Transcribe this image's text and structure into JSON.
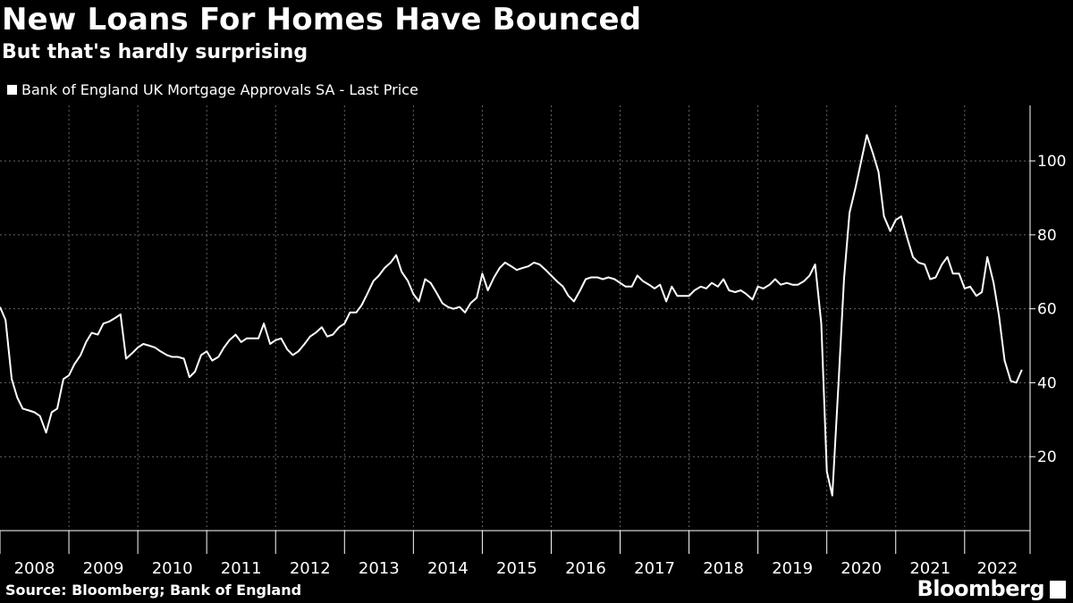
{
  "title": "New Loans For Homes Have Bounced",
  "subtitle": "But that's hardly surprising",
  "legend": "Bank of England UK Mortgage Approvals SA - Last Price",
  "source": "Source: Bloomberg; Bank of England",
  "brand": "Bloomberg",
  "colors": {
    "background": "#000000",
    "line": "#ffffff",
    "grid": "#666666"
  },
  "chart_data": {
    "type": "line",
    "title": "New Loans For Homes Have Bounced",
    "subtitle": "But that's hardly surprising",
    "xlabel": "",
    "ylabel": "",
    "ylim": [
      0,
      115
    ],
    "xlim": [
      2008.0,
      2022.95
    ],
    "yticks": [
      20,
      40,
      60,
      80,
      100
    ],
    "xticks": [
      "2008",
      "2009",
      "2010",
      "2011",
      "2012",
      "2013",
      "2014",
      "2015",
      "2016",
      "2017",
      "2018",
      "2019",
      "2020",
      "2021",
      "2022"
    ],
    "grid": true,
    "legend_position": "top-left",
    "series": [
      {
        "name": "Bank of England UK Mortgage Approvals SA - Last Price",
        "x": [
          2008.0,
          2008.08,
          2008.17,
          2008.25,
          2008.33,
          2008.42,
          2008.5,
          2008.58,
          2008.67,
          2008.75,
          2008.83,
          2008.92,
          2009.0,
          2009.08,
          2009.17,
          2009.25,
          2009.33,
          2009.42,
          2009.5,
          2009.58,
          2009.67,
          2009.75,
          2009.83,
          2009.92,
          2010.0,
          2010.08,
          2010.17,
          2010.25,
          2010.33,
          2010.42,
          2010.5,
          2010.58,
          2010.67,
          2010.75,
          2010.83,
          2010.92,
          2011.0,
          2011.08,
          2011.17,
          2011.25,
          2011.33,
          2011.42,
          2011.5,
          2011.58,
          2011.67,
          2011.75,
          2011.83,
          2011.92,
          2012.0,
          2012.08,
          2012.17,
          2012.25,
          2012.33,
          2012.42,
          2012.5,
          2012.58,
          2012.67,
          2012.75,
          2012.83,
          2012.92,
          2013.0,
          2013.08,
          2013.17,
          2013.25,
          2013.33,
          2013.42,
          2013.5,
          2013.58,
          2013.67,
          2013.75,
          2013.83,
          2013.92,
          2014.0,
          2014.08,
          2014.17,
          2014.25,
          2014.33,
          2014.42,
          2014.5,
          2014.58,
          2014.67,
          2014.75,
          2014.83,
          2014.92,
          2015.0,
          2015.08,
          2015.17,
          2015.25,
          2015.33,
          2015.42,
          2015.5,
          2015.58,
          2015.67,
          2015.75,
          2015.83,
          2015.92,
          2016.0,
          2016.08,
          2016.17,
          2016.25,
          2016.33,
          2016.42,
          2016.5,
          2016.58,
          2016.67,
          2016.75,
          2016.83,
          2016.92,
          2017.0,
          2017.08,
          2017.17,
          2017.25,
          2017.33,
          2017.42,
          2017.5,
          2017.58,
          2017.67,
          2017.75,
          2017.83,
          2017.92,
          2018.0,
          2018.08,
          2018.17,
          2018.25,
          2018.33,
          2018.42,
          2018.5,
          2018.58,
          2018.67,
          2018.75,
          2018.83,
          2018.92,
          2019.0,
          2019.08,
          2019.17,
          2019.25,
          2019.33,
          2019.42,
          2019.5,
          2019.58,
          2019.67,
          2019.75,
          2019.83,
          2019.92,
          2020.0,
          2020.08,
          2020.17,
          2020.25,
          2020.33,
          2020.42,
          2020.5,
          2020.58,
          2020.67,
          2020.75,
          2020.83,
          2020.92,
          2021.0,
          2021.08,
          2021.17,
          2021.25,
          2021.33,
          2021.42,
          2021.5,
          2021.58,
          2021.67,
          2021.75,
          2021.83,
          2021.92,
          2022.0,
          2022.08,
          2022.17,
          2022.25,
          2022.33,
          2022.42,
          2022.5,
          2022.58,
          2022.67,
          2022.75,
          2022.83
        ],
        "values": [
          60.5,
          57,
          41,
          36,
          33,
          32.5,
          32,
          31,
          26.5,
          32,
          33,
          41,
          42,
          45,
          47.5,
          51,
          53.5,
          53,
          56,
          56.5,
          57.5,
          58.5,
          46.5,
          48,
          49.5,
          50.5,
          50,
          49.5,
          48.5,
          47.5,
          47,
          47,
          46.5,
          41.5,
          43,
          47.5,
          48.5,
          46,
          47,
          49.5,
          51.5,
          53,
          51,
          52,
          52,
          52,
          56,
          50.5,
          51.5,
          52,
          49,
          47.5,
          48.5,
          50.5,
          52.5,
          53.5,
          55,
          52.5,
          53,
          55,
          56,
          59,
          59,
          61,
          64,
          67.5,
          69,
          71,
          72.5,
          74.5,
          70,
          67.5,
          64,
          62,
          68,
          67,
          64.5,
          61.5,
          60.5,
          60,
          60.5,
          59,
          61.5,
          63,
          69.5,
          65,
          68.5,
          71,
          72.5,
          71.5,
          70.5,
          71,
          71.5,
          72.5,
          72,
          70.5,
          69,
          67.5,
          66,
          63.5,
          62,
          65,
          68,
          68.5,
          68.5,
          68,
          68.5,
          68,
          67,
          66,
          66,
          69,
          67.5,
          66.5,
          65.5,
          66.5,
          62,
          66,
          63.5,
          63.5,
          63.5,
          65,
          66,
          65.5,
          67,
          66,
          68,
          65,
          64.5,
          65,
          64,
          62.5,
          66,
          65.5,
          66.5,
          68,
          66.5,
          67,
          66.5,
          66.5,
          67.5,
          69,
          72,
          56,
          16,
          9.5,
          40,
          68,
          86,
          93,
          100,
          107,
          102,
          97,
          85,
          81,
          84,
          85,
          79,
          74,
          72.5,
          72,
          68,
          68.5,
          72,
          74,
          69.5,
          69.5,
          65.5,
          66,
          63.5,
          64.5,
          74,
          67,
          58,
          46,
          40.5,
          40,
          43.5
        ]
      }
    ]
  }
}
